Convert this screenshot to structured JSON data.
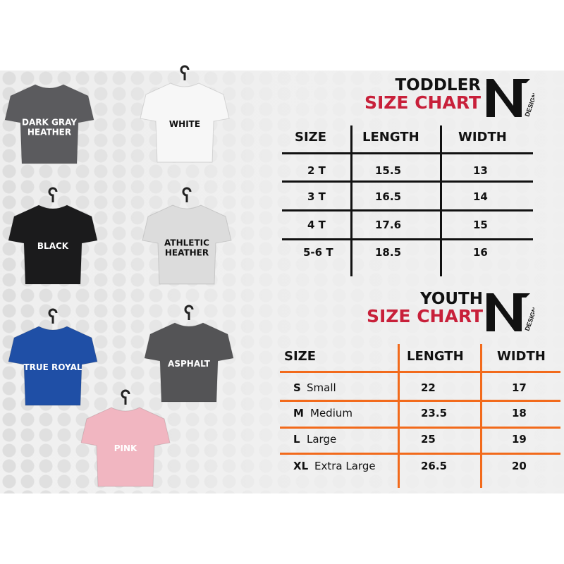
{
  "shirts": [
    {
      "label": "DARK GRAY HEATHER",
      "color": "#5b5b5e",
      "text_color": "#ffffff"
    },
    {
      "label": "WHITE",
      "color": "#f7f7f7",
      "text_color": "#111111"
    },
    {
      "label": "BLACK",
      "color": "#1b1b1c",
      "text_color": "#ffffff"
    },
    {
      "label": "ATHLETIC HEATHER",
      "color": "#dcdcdc",
      "text_color": "#111111"
    },
    {
      "label": "TRUE ROYAL",
      "color": "#1f4fa6",
      "text_color": "#ffffff"
    },
    {
      "label": "ASPHALT",
      "color": "#545456",
      "text_color": "#ffffff"
    },
    {
      "label": "PINK",
      "color": "#f1b6c1",
      "text_color": "#ffffff"
    }
  ],
  "brand": {
    "logo_text": "NV",
    "logo_sub": "DESIGN"
  },
  "toddler": {
    "title1": "TODDLER",
    "title2": "SIZE CHART",
    "headers": [
      "SIZE",
      "LENGTH",
      "WIDTH"
    ],
    "rows": [
      [
        "2 T",
        "15.5",
        "13"
      ],
      [
        "3 T",
        "16.5",
        "14"
      ],
      [
        "4 T",
        "17.6",
        "15"
      ],
      [
        "5-6 T",
        "18.5",
        "16"
      ]
    ],
    "line_color": "#111111"
  },
  "youth": {
    "title1": "YOUTH",
    "title2": "SIZE CHART",
    "headers": [
      "SIZE",
      "LENGTH",
      "WIDTH"
    ],
    "rows": [
      [
        "S",
        "Small",
        "22",
        "17"
      ],
      [
        "M",
        "Medium",
        "23.5",
        "18"
      ],
      [
        "L",
        "Large",
        "25",
        "19"
      ],
      [
        "XL",
        "Extra Large",
        "26.5",
        "20"
      ]
    ],
    "line_color": "#f26a1b"
  },
  "colors": {
    "accent_red": "#c8203a"
  }
}
